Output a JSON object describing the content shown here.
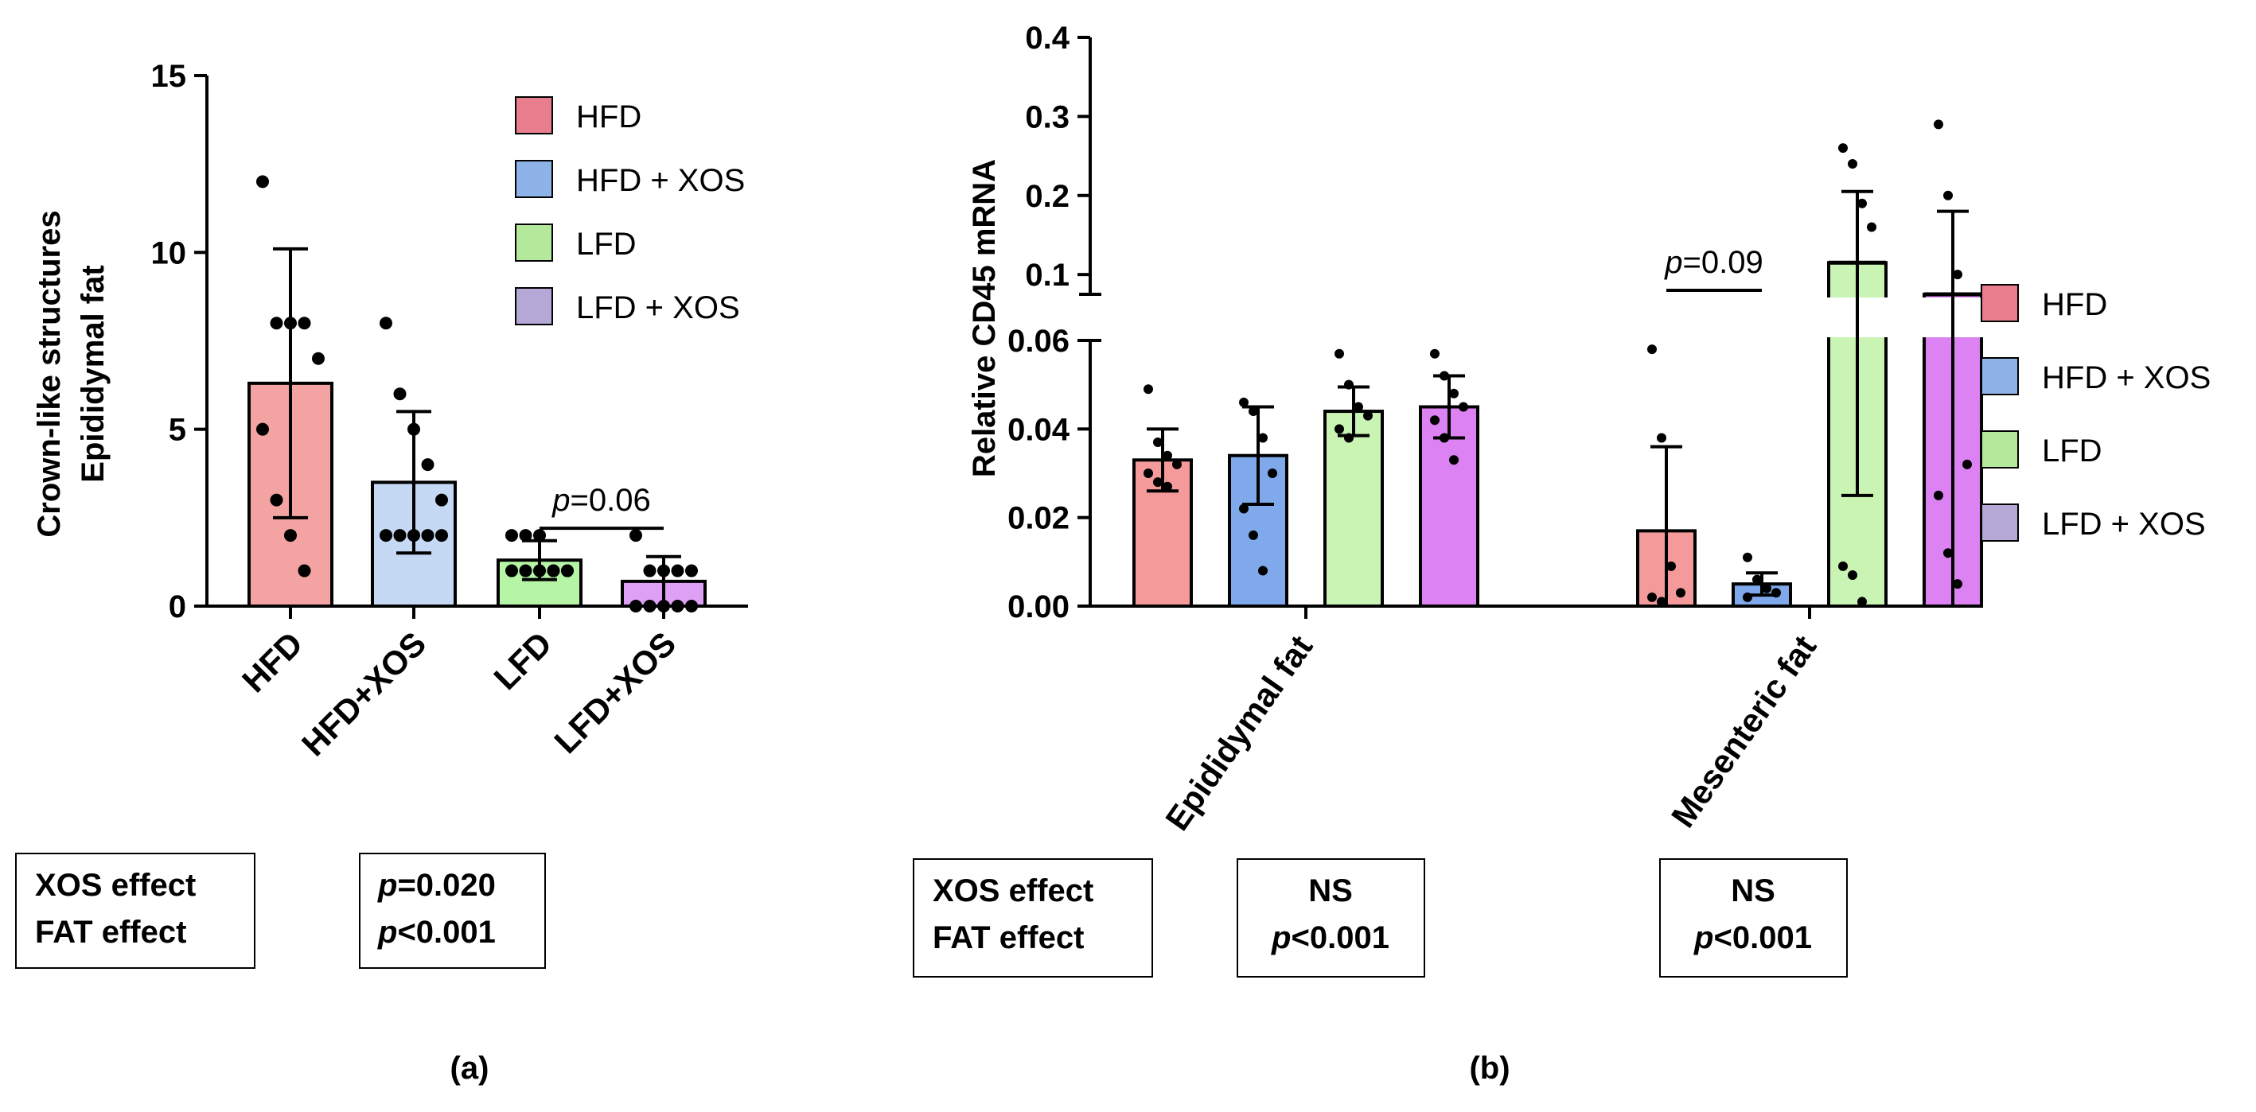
{
  "chart_data": [
    {
      "panel": "(a)",
      "type": "bar",
      "ylabel_line1": "Crown-like structures",
      "ylabel_line2": "Epididymal fat",
      "ylim": [
        0,
        15
      ],
      "yticks": [
        "0",
        "5",
        "10",
        "15"
      ],
      "categories": [
        "HFD",
        "HFD+XOS",
        "LFD",
        "LFD+XOS"
      ],
      "bars": [
        {
          "name": "HFD",
          "mean": 6.3,
          "sd": 3.8,
          "color": "#f4a3a3",
          "points": [
            12,
            8,
            8,
            8,
            7,
            5,
            3,
            2,
            1
          ]
        },
        {
          "name": "HFD+XOS",
          "mean": 3.5,
          "sd": 2.0,
          "color": "#c5d8f4",
          "points": [
            8,
            6,
            5,
            4,
            3,
            2,
            2,
            2,
            2,
            2
          ]
        },
        {
          "name": "LFD",
          "mean": 1.3,
          "sd": 0.55,
          "color": "#b6f4a6",
          "points": [
            2,
            2,
            2,
            1,
            1,
            1,
            1,
            1,
            1,
            1
          ]
        },
        {
          "name": "LFD+XOS",
          "mean": 0.7,
          "sd": 0.7,
          "color": "#dda0f4",
          "points": [
            2,
            1,
            1,
            1,
            0,
            0,
            0,
            0,
            0,
            1
          ]
        }
      ],
      "annotation": {
        "p_letter": "p",
        "text": "=0.06",
        "between": [
          "LFD",
          "LFD+XOS"
        ],
        "y": 2.2
      },
      "legend": [
        {
          "label": "HFD",
          "color": "#e87d8d"
        },
        {
          "label": "HFD + XOS",
          "color": "#8db3e8"
        },
        {
          "label": "LFD",
          "color": "#b4e89a"
        },
        {
          "label": "LFD + XOS",
          "color": "#b6a8d6"
        }
      ]
    },
    {
      "panel": "(b)",
      "type": "bar",
      "ylabel": "Relative CD45 mRNA",
      "y_lower_range": [
        0,
        0.06
      ],
      "y_upper_range": [
        0.075,
        0.4
      ],
      "yticks_lower": [
        "0.00",
        "0.02",
        "0.04",
        "0.06"
      ],
      "yticks_upper": [
        "0.1",
        "0.2",
        "0.3",
        "0.4"
      ],
      "groups": [
        "Epididymal fat",
        "Mesenteric fat"
      ],
      "series": [
        {
          "name": "HFD",
          "color": "#f49a9a",
          "means": [
            0.033,
            0.017
          ],
          "sd": [
            0.007,
            0.019
          ],
          "points": [
            [
              0.049,
              0.037,
              0.034,
              0.032,
              0.03,
              0.028,
              0.027
            ],
            [
              0.058,
              0.038,
              0.009,
              0.003,
              0.002,
              0.001
            ]
          ]
        },
        {
          "name": "HFD + XOS",
          "color": "#7fa9ea",
          "means": [
            0.034,
            0.005
          ],
          "sd": [
            0.011,
            0.0025
          ],
          "points": [
            [
              0.046,
              0.044,
              0.038,
              0.03,
              0.022,
              0.016,
              0.008
            ],
            [
              0.011,
              0.006,
              0.004,
              0.003,
              0.002
            ]
          ]
        },
        {
          "name": "LFD",
          "color": "#c9f4b3",
          "means": [
            0.044,
            0.115
          ],
          "sd": [
            0.0055,
            0.09
          ],
          "points": [
            [
              0.057,
              0.05,
              0.045,
              0.043,
              0.04,
              0.038
            ],
            [
              0.26,
              0.24,
              0.19,
              0.16,
              0.009,
              0.007,
              0.001
            ]
          ]
        },
        {
          "name": "LFD + XOS",
          "color": "#dc82f2",
          "means": [
            0.045,
            0.075
          ],
          "sd": [
            0.007,
            0.105
          ],
          "points": [
            [
              0.057,
              0.052,
              0.048,
              0.045,
              0.042,
              0.038,
              0.033
            ],
            [
              0.29,
              0.2,
              0.1,
              0.032,
              0.025,
              0.012,
              0.005
            ]
          ]
        }
      ],
      "annotation": {
        "p_letter": "p",
        "text": "=0.09",
        "group": "Mesenteric fat",
        "between": [
          "HFD",
          "HFD + XOS"
        ],
        "y": 0.08
      },
      "legend": [
        {
          "label": "HFD",
          "color": "#e87d8d"
        },
        {
          "label": "HFD + XOS",
          "color": "#8db3e8"
        },
        {
          "label": "LFD",
          "color": "#b4e89a"
        },
        {
          "label": "LFD + XOS",
          "color": "#b6a8d6"
        }
      ]
    }
  ],
  "stats_a": {
    "labels": [
      "XOS effect",
      "FAT effect"
    ],
    "values": [
      {
        "p": "p",
        "rest": "=0.020"
      },
      {
        "p": "p",
        "rest": "<0.001"
      }
    ]
  },
  "stats_b": {
    "labels": [
      "XOS effect",
      "FAT effect"
    ],
    "epididymal": [
      "NS",
      {
        "p": "p",
        "rest": "<0.001"
      }
    ],
    "mesenteric": [
      "NS",
      {
        "p": "p",
        "rest": "<0.001"
      }
    ]
  }
}
